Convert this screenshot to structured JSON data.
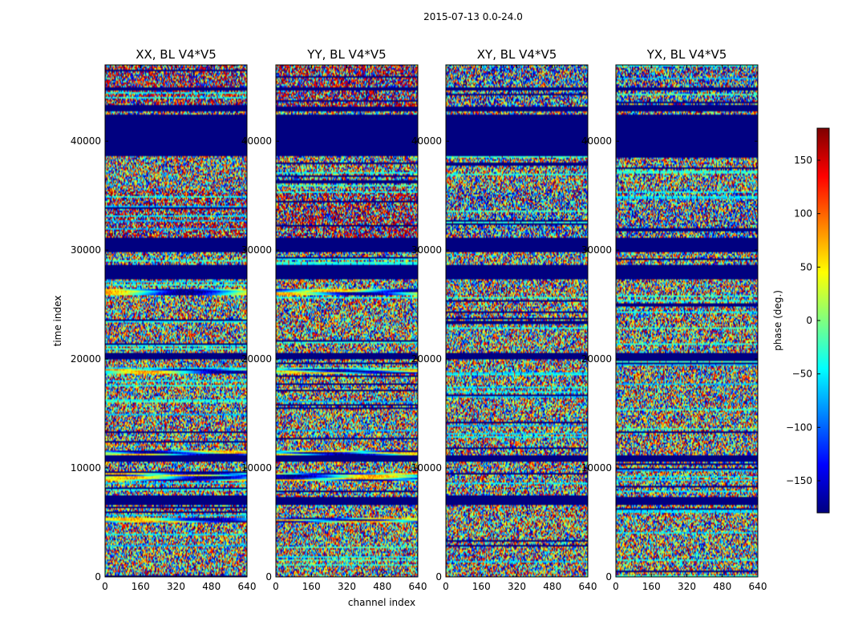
{
  "chart_data": {
    "type": "heatmap",
    "suptitle": "2015-07-13 0.0-24.0",
    "xlabel": "channel index",
    "ylabel": "time index",
    "xlim": [
      0,
      640
    ],
    "ylim": [
      0,
      47000
    ],
    "xticks": [
      "0",
      "160",
      "320",
      "480",
      "640"
    ],
    "yticks": [
      "0",
      "10000",
      "20000",
      "30000",
      "40000"
    ],
    "ytick_values": [
      0,
      10000,
      20000,
      30000,
      40000
    ],
    "xtick_values": [
      0,
      160,
      320,
      480,
      640
    ],
    "colormap": "jet",
    "colorbar": {
      "label": "phase (deg.)",
      "range": [
        -180,
        180
      ],
      "ticks": [
        "−150",
        "−100",
        "−50",
        "0",
        "50",
        "100",
        "150"
      ],
      "tick_values": [
        -150,
        -100,
        -50,
        0,
        50,
        100,
        150
      ]
    },
    "panels": [
      {
        "title": "XX, BL V4*V5",
        "name": "XX"
      },
      {
        "title": "YY, BL V4*V5",
        "name": "YY"
      },
      {
        "title": "XY, BL V4*V5",
        "name": "XY"
      },
      {
        "title": "YX, BL V4*V5",
        "name": "YX"
      }
    ],
    "flagged_time_ranges": [
      [
        6600,
        7300
      ],
      [
        10600,
        11100
      ],
      [
        20000,
        20500
      ],
      [
        27300,
        28600
      ],
      [
        29800,
        31200
      ],
      [
        38600,
        41500
      ],
      [
        41600,
        42400
      ],
      [
        42700,
        43200
      ],
      [
        44600,
        45000
      ]
    ],
    "coherent_time_ranges_parallel_hands": [
      [
        5000,
        5500
      ],
      [
        8800,
        9600
      ],
      [
        11200,
        11600
      ],
      [
        18600,
        19100
      ],
      [
        25900,
        26500
      ]
    ],
    "noise_time_ranges_blue_shift": [
      [
        31200,
        35500
      ],
      [
        43200,
        47000
      ]
    ]
  }
}
